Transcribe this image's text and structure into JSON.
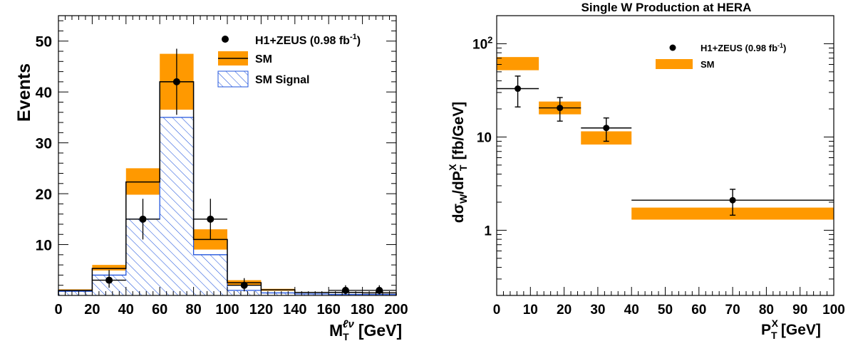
{
  "chart_data": [
    {
      "type": "bar",
      "title": "",
      "xlabel": {
        "main": "M",
        "sub": "T",
        "sup": "ℓν",
        "unit": "[GeV]"
      },
      "ylabel": "Events",
      "xlim": [
        0,
        200
      ],
      "ylim": [
        0,
        55
      ],
      "x_ticks": [
        "0",
        "20",
        "40",
        "60",
        "80",
        "100",
        "120",
        "140",
        "160",
        "180",
        "200"
      ],
      "y_ticks": [
        "10",
        "20",
        "30",
        "40",
        "50"
      ],
      "y_tick_values": [
        10,
        20,
        30,
        40,
        50
      ],
      "grid": false,
      "legend_position": "top-right",
      "legend": [
        {
          "label": "H1+ZEUS (0.98 fb",
          "sup": "-1",
          "close": ")"
        },
        {
          "label": "SM"
        },
        {
          "label": "SM Signal"
        }
      ],
      "bin_edges": [
        0,
        20,
        40,
        60,
        80,
        100,
        120,
        140,
        160,
        180,
        200
      ],
      "series": [
        {
          "name": "SM",
          "values": [
            1.0,
            5.3,
            22.3,
            42.0,
            11.0,
            2.5,
            1.1,
            0.6,
            0.6,
            0.5
          ],
          "band_low": [
            0.8,
            4.9,
            19.8,
            36.5,
            9.0,
            2.1,
            0.9,
            0.5,
            0.5,
            0.4
          ],
          "band_high": [
            1.2,
            6.0,
            25.0,
            47.5,
            13.0,
            3.0,
            1.3,
            0.7,
            0.7,
            0.6
          ]
        },
        {
          "name": "SM Signal",
          "values": [
            0.8,
            4.0,
            15.0,
            35.0,
            8.0,
            1.0,
            0.5,
            0.3,
            0.2,
            0.2
          ]
        }
      ],
      "data_points": [
        {
          "x": 30,
          "y": 3,
          "ylow": 1.5,
          "yhigh": 5.0,
          "xlow": 20,
          "xhigh": 40
        },
        {
          "x": 50,
          "y": 15,
          "ylow": 11.0,
          "yhigh": 19.0,
          "xlow": 40,
          "xhigh": 60
        },
        {
          "x": 70,
          "y": 42,
          "ylow": 35.5,
          "yhigh": 48.5,
          "xlow": 60,
          "xhigh": 80
        },
        {
          "x": 90,
          "y": 15,
          "ylow": 11.0,
          "yhigh": 19.0,
          "xlow": 80,
          "xhigh": 100
        },
        {
          "x": 110,
          "y": 2,
          "ylow": 0.8,
          "yhigh": 3.4,
          "xlow": 100,
          "xhigh": 120
        },
        {
          "x": 170,
          "y": 1,
          "ylow": 0.2,
          "yhigh": 2.0,
          "xlow": 160,
          "xhigh": 180
        },
        {
          "x": 190,
          "y": 1,
          "ylow": 0.2,
          "yhigh": 2.0,
          "xlow": 180,
          "xhigh": 200
        }
      ],
      "colors": {
        "sm_band": "#ff9900",
        "signal_hatch": "#2255dd",
        "line": "#000000"
      }
    },
    {
      "type": "scatter",
      "title": "Single W Production at HERA",
      "xlabel": {
        "main": "P",
        "sub": "T",
        "sup": "X",
        "unit": "[GeV]"
      },
      "ylabel": "dσ_W/dP_T^X [fb/GeV]",
      "ylabel_parts": {
        "a": "dσ",
        "a_sub": "W",
        "b": "/dP",
        "b_sub": "T",
        "b_sup": "X",
        "c": " [fb/GeV]"
      },
      "xlim": [
        0,
        100
      ],
      "ylim": [
        0.2,
        200
      ],
      "log_y": true,
      "x_ticks": [
        "0",
        "10",
        "20",
        "30",
        "40",
        "50",
        "60",
        "70",
        "80",
        "90",
        "100"
      ],
      "y_ticks": [
        "1",
        "10",
        "10"
      ],
      "y_tick_sup": "2",
      "y_tick_values": [
        1,
        10,
        100
      ],
      "grid": false,
      "legend_position": "top-right",
      "legend": [
        {
          "label": "H1+ZEUS (0.98 fb",
          "sup": "-1",
          "close": ")"
        },
        {
          "label": "SM"
        }
      ],
      "sm_bands": [
        {
          "xlow": 0,
          "xhigh": 12.5,
          "low": 52,
          "high": 72
        },
        {
          "xlow": 12.5,
          "xhigh": 25,
          "low": 17.5,
          "high": 24
        },
        {
          "xlow": 25,
          "xhigh": 40,
          "low": 8.3,
          "high": 11.5
        },
        {
          "xlow": 40,
          "xhigh": 100,
          "low": 1.3,
          "high": 1.75
        }
      ],
      "data_points": [
        {
          "x": 6.25,
          "y": 33,
          "ylow": 21,
          "yhigh": 45,
          "xlow": 0,
          "xhigh": 12.5
        },
        {
          "x": 18.75,
          "y": 20.5,
          "ylow": 14.8,
          "yhigh": 26.5,
          "xlow": 12.5,
          "xhigh": 25
        },
        {
          "x": 32.5,
          "y": 12.5,
          "ylow": 9.0,
          "yhigh": 16.0,
          "xlow": 25,
          "xhigh": 40
        },
        {
          "x": 70,
          "y": 2.1,
          "ylow": 1.45,
          "yhigh": 2.75,
          "xlow": 40,
          "xhigh": 100
        }
      ],
      "colors": {
        "sm_band": "#ff9900",
        "line": "#000000"
      }
    }
  ]
}
